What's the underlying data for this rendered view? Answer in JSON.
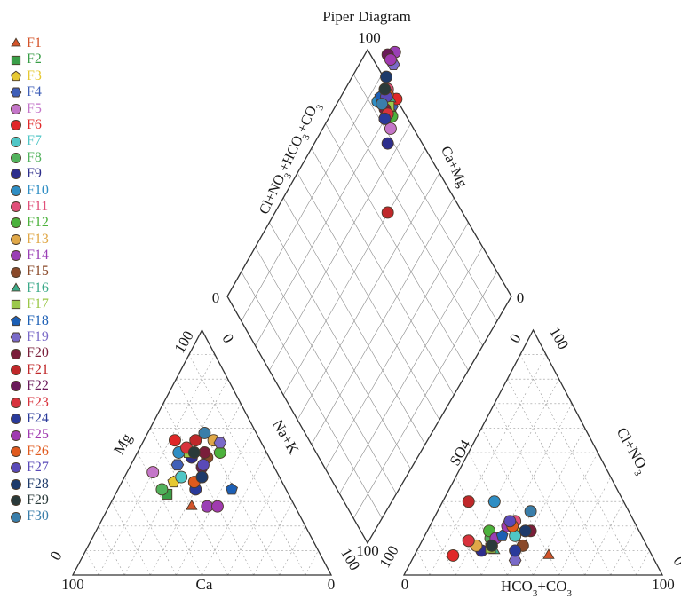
{
  "chart_data": {
    "type": "scatter",
    "title": "Piper Diagram",
    "diamond": {
      "left_axis_label": "Cl+NO3+HCO3+CO3",
      "right_axis_label": "Ca+Mg",
      "tick_top": "100",
      "tick_left": "0",
      "tick_right": "0",
      "tick_bottom": "100"
    },
    "cation_triangle": {
      "left_axis_label": "Mg",
      "right_axis_label": "Na+K",
      "bottom_axis_label": "Ca",
      "tick_top": "100",
      "tick_top_right": "0",
      "tick_bottom_left_side": "0",
      "tick_bottom_left": "100",
      "tick_bottom_right": "0",
      "tick_right_side": "100"
    },
    "anion_triangle": {
      "left_axis_label": "SO4",
      "right_axis_label": "Cl+NO3",
      "bottom_axis_label": "HCO3+CO3",
      "tick_top": "100",
      "tick_top_left": "0",
      "tick_left_side": "100",
      "tick_bottom_left": "0",
      "tick_bottom_right": "100",
      "tick_right_side": "0"
    },
    "series": [
      {
        "name": "F1",
        "color": "#d4542a",
        "marker": "triangle",
        "cation": [
          28,
          32
        ],
        "anion": [
          8,
          52
        ],
        "diamond": [
          85,
          11
        ]
      },
      {
        "name": "F2",
        "color": "#3a9e48",
        "marker": "square",
        "cation": [
          33,
          20
        ],
        "anion": [
          20,
          32
        ],
        "diamond": [
          83,
          14
        ]
      },
      {
        "name": "F3",
        "color": "#e6c832",
        "marker": "pentagon",
        "cation": [
          38,
          20
        ],
        "anion": [
          18,
          34
        ],
        "diamond": [
          82,
          15
        ]
      },
      {
        "name": "F4",
        "color": "#3f5fb8",
        "marker": "hexagon",
        "cation": [
          45,
          18
        ],
        "anion": [
          22,
          30
        ],
        "diamond": [
          80,
          17
        ]
      },
      {
        "name": "F5",
        "color": "#c476c9",
        "marker": "circle",
        "cation": [
          42,
          10
        ],
        "anion": [
          14,
          18
        ],
        "diamond": [
          76,
          16
        ]
      },
      {
        "name": "F6",
        "color": "#e02828",
        "marker": "circle",
        "cation": [
          55,
          12
        ],
        "anion": [
          8,
          15
        ],
        "diamond": [
          80,
          20
        ]
      },
      {
        "name": "F7",
        "color": "#4fc6c6",
        "marker": "circle",
        "cation": [
          40,
          22
        ],
        "anion": [
          16,
          35
        ],
        "diamond": [
          84,
          14
        ]
      },
      {
        "name": "F8",
        "color": "#52b25c",
        "marker": "circle",
        "cation": [
          35,
          17
        ],
        "anion": [
          15,
          26
        ],
        "diamond": [
          79,
          16
        ]
      },
      {
        "name": "F9",
        "color": "#2e2e8c",
        "marker": "circle",
        "cation": [
          48,
          22
        ],
        "anion": [
          10,
          25
        ],
        "diamond": [
          74,
          14
        ]
      },
      {
        "name": "F10",
        "color": "#2f8ec4",
        "marker": "circle",
        "cation": [
          50,
          16
        ],
        "anion": [
          30,
          20
        ],
        "diamond": [
          86,
          7
        ]
      },
      {
        "name": "F11",
        "color": "#e0507a",
        "marker": "circle",
        "cation": [
          40,
          30
        ],
        "anion": [
          22,
          32
        ],
        "diamond": [
          85,
          14
        ]
      },
      {
        "name": "F12",
        "color": "#4cb23c",
        "marker": "circle",
        "cation": [
          50,
          32
        ],
        "anion": [
          18,
          24
        ],
        "diamond": [
          78,
          17
        ]
      },
      {
        "name": "F13",
        "color": "#e0a848",
        "marker": "circle",
        "cation": [
          55,
          27
        ],
        "anion": [
          12,
          22
        ],
        "diamond": [
          82,
          13
        ]
      },
      {
        "name": "F14",
        "color": "#9a3fb5",
        "marker": "circle",
        "cation": [
          28,
          38
        ],
        "anion": [
          15,
          28
        ],
        "diamond": [
          90,
          19
        ]
      },
      {
        "name": "F15",
        "color": "#8a4a2a",
        "marker": "circle",
        "cation": [
          48,
          28
        ],
        "anion": [
          12,
          40
        ],
        "diamond": [
          80,
          12
        ]
      },
      {
        "name": "F16",
        "color": "#3caa8a",
        "marker": "triangle",
        "cation": [
          50,
          22
        ],
        "anion": [
          10,
          30
        ],
        "diamond": [
          82,
          16
        ]
      },
      {
        "name": "F17",
        "color": "#9cc84a",
        "marker": "square",
        "cation": [
          50,
          20
        ],
        "anion": [
          11,
          28
        ],
        "diamond": [
          81,
          15
        ]
      },
      {
        "name": "F18",
        "color": "#1c5fb5",
        "marker": "pentagon",
        "cation": [
          35,
          44
        ],
        "anion": [
          16,
          30
        ],
        "diamond": [
          86,
          9
        ]
      },
      {
        "name": "F19",
        "color": "#7a6ac8",
        "marker": "hexagon",
        "cation": [
          54,
          30
        ],
        "anion": [
          6,
          40
        ],
        "diamond": [
          88,
          18
        ]
      },
      {
        "name": "F20",
        "color": "#7a1e3a",
        "marker": "circle",
        "cation": [
          50,
          26
        ],
        "anion": [
          18,
          40
        ],
        "diamond": [
          82,
          12
        ]
      },
      {
        "name": "F21",
        "color": "#c0282a",
        "marker": "circle",
        "cation": [
          55,
          20
        ],
        "anion": [
          30,
          10
        ],
        "diamond": [
          60,
          14
        ]
      },
      {
        "name": "F22",
        "color": "#6a1a5a",
        "marker": "circle",
        "cation": [
          44,
          28
        ],
        "anion": [
          18,
          38
        ],
        "diamond": [
          92,
          14
        ]
      },
      {
        "name": "F23",
        "color": "#d8323c",
        "marker": "circle",
        "cation": [
          52,
          18
        ],
        "anion": [
          14,
          18
        ],
        "diamond": [
          80,
          14
        ]
      },
      {
        "name": "F24",
        "color": "#2a3a9a",
        "marker": "circle",
        "cation": [
          35,
          30
        ],
        "anion": [
          10,
          38
        ],
        "diamond": [
          80,
          12
        ]
      },
      {
        "name": "F25",
        "color": "#a03ab0",
        "marker": "circle",
        "cation": [
          28,
          42
        ],
        "anion": [
          20,
          30
        ],
        "diamond": [
          90,
          16
        ]
      },
      {
        "name": "F26",
        "color": "#e05a1e",
        "marker": "circle",
        "cation": [
          38,
          28
        ],
        "anion": [
          20,
          32
        ],
        "diamond": [
          84,
          14
        ]
      },
      {
        "name": "F27",
        "color": "#5a4ab8",
        "marker": "circle",
        "cation": [
          45,
          28
        ],
        "anion": [
          22,
          30
        ],
        "diamond": [
          84,
          13
        ]
      },
      {
        "name": "F28",
        "color": "#1e3a6a",
        "marker": "circle",
        "cation": [
          40,
          30
        ],
        "anion": [
          18,
          38
        ],
        "diamond": [
          88,
          13
        ]
      },
      {
        "name": "F29",
        "color": "#2a3a3a",
        "marker": "circle",
        "cation": [
          50,
          22
        ],
        "anion": [
          12,
          28
        ],
        "diamond": [
          86,
          12
        ]
      },
      {
        "name": "F30",
        "color": "#3a7eaa",
        "marker": "circle",
        "cation": [
          58,
          22
        ],
        "anion": [
          26,
          36
        ],
        "diamond": [
          84,
          10
        ]
      }
    ]
  }
}
